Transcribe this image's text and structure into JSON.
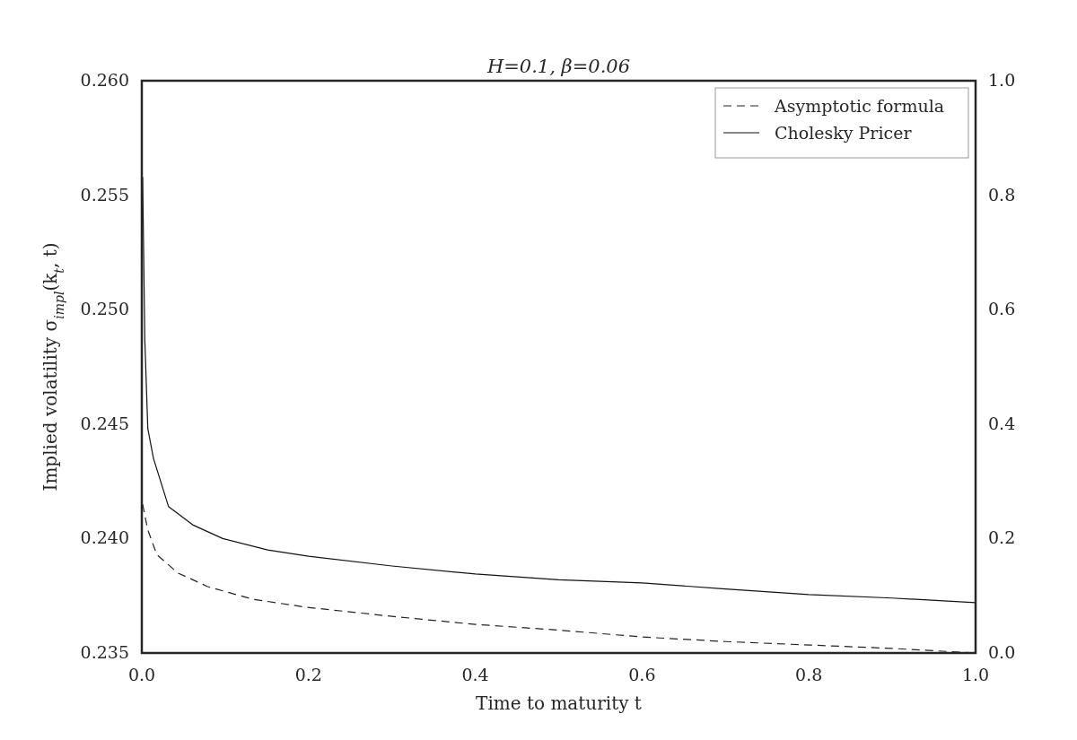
{
  "chart_data": {
    "type": "line",
    "title": "H=0.1, β=0.06",
    "xlabel": "Time to maturity t",
    "ylabel": "Implied volatility σ$_{impl}$(k$_{t}$, t)",
    "xlim": [
      0,
      1
    ],
    "xticks": [
      {
        "value": 0,
        "label": "0.0"
      },
      0.2,
      0.4,
      0.6,
      0.8,
      {
        "value": 1,
        "label": "1.0"
      }
    ],
    "ylim": [
      0.235,
      0.26
    ],
    "yticks": [
      {
        "value": 0.235,
        "label": "0.235"
      },
      {
        "value": 0.24,
        "label": "0.240"
      },
      {
        "value": 0.245,
        "label": "0.245"
      },
      {
        "value": 0.25,
        "label": "0.250"
      },
      {
        "value": 0.255,
        "label": "0.255"
      },
      {
        "value": 0.26,
        "label": "0.260"
      }
    ],
    "y2lim": [
      0,
      1
    ],
    "y2ticks": [
      {
        "value": 0,
        "label": "0.0"
      },
      0.2,
      0.4,
      0.6,
      0.8,
      {
        "value": 1,
        "label": "1.0"
      }
    ],
    "grid": false,
    "legend": "top right",
    "series": [
      {
        "name": "Asymptotic formula",
        "color": "#222222",
        "line_style": "dashed",
        "x": [
          0.001,
          0.007,
          0.018,
          0.043,
          0.079,
          0.133,
          0.197,
          0.3,
          0.4,
          0.5,
          0.6,
          0.7,
          0.8,
          0.9,
          1.0
        ],
        "values": [
          0.2415,
          0.2404,
          0.2393,
          0.2385,
          0.2379,
          0.23735,
          0.237,
          0.2366,
          0.23625,
          0.236,
          0.2357,
          0.2355,
          0.23535,
          0.2352,
          0.235
        ]
      },
      {
        "name": "Cholesky Pricer",
        "color": "#111111",
        "line_style": "solid",
        "x": [
          0.001,
          0.0036,
          0.0072,
          0.014,
          0.032,
          0.061,
          0.097,
          0.151,
          0.2,
          0.3,
          0.4,
          0.5,
          0.6,
          0.7,
          0.8,
          0.9,
          1.0
        ],
        "values": [
          0.2558,
          0.2487,
          0.2448,
          0.2435,
          0.2414,
          0.2406,
          0.24,
          0.2395,
          0.23923,
          0.2388,
          0.23845,
          0.2382,
          0.23806,
          0.2378,
          0.23755,
          0.2374,
          0.2372
        ]
      }
    ]
  }
}
